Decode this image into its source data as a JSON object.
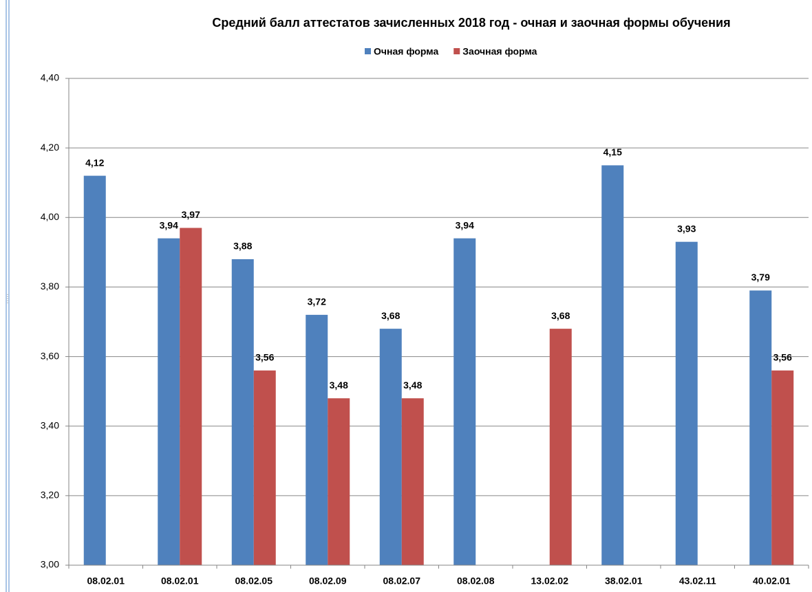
{
  "chart_data": {
    "type": "bar",
    "title": "Средний балл аттестатов зачисленных 2018 год - очная   и заочная  формы обучения",
    "categories": [
      "08.02.01",
      "08.02.01",
      "08.02.05",
      "08.02.09",
      "08.02.07",
      "08.02.08",
      "13.02.02",
      "38.02.01",
      "43.02.11",
      "40.02.01"
    ],
    "series": [
      {
        "name": "Очная форма",
        "color": "#4f81bd",
        "values": [
          4.12,
          3.94,
          3.88,
          3.72,
          3.68,
          3.94,
          null,
          4.15,
          3.93,
          3.79
        ],
        "value_labels": [
          "4,12",
          "3,94",
          "3,88",
          "3,72",
          "3,68",
          "3,94",
          null,
          "4,15",
          "3,93",
          "3,79"
        ]
      },
      {
        "name": "Заочная форма",
        "color": "#c0504d",
        "values": [
          null,
          3.97,
          3.56,
          3.48,
          3.48,
          null,
          3.68,
          null,
          null,
          3.56
        ],
        "value_labels": [
          null,
          "3,97",
          "3,56",
          "3,48",
          "3,48",
          null,
          "3,68",
          null,
          null,
          "3,56"
        ]
      }
    ],
    "ylim": [
      3.0,
      4.4
    ],
    "yticks": [
      {
        "value": 3.0,
        "label": "3,00"
      },
      {
        "value": 3.2,
        "label": "3,20"
      },
      {
        "value": 3.4,
        "label": "3,40"
      },
      {
        "value": 3.6,
        "label": "3,60"
      },
      {
        "value": 3.8,
        "label": "3,80"
      },
      {
        "value": 4.0,
        "label": "4,00"
      },
      {
        "value": 4.2,
        "label": "4,20"
      },
      {
        "value": 4.4,
        "label": "4,40"
      }
    ],
    "grid": true,
    "legend": "top"
  }
}
